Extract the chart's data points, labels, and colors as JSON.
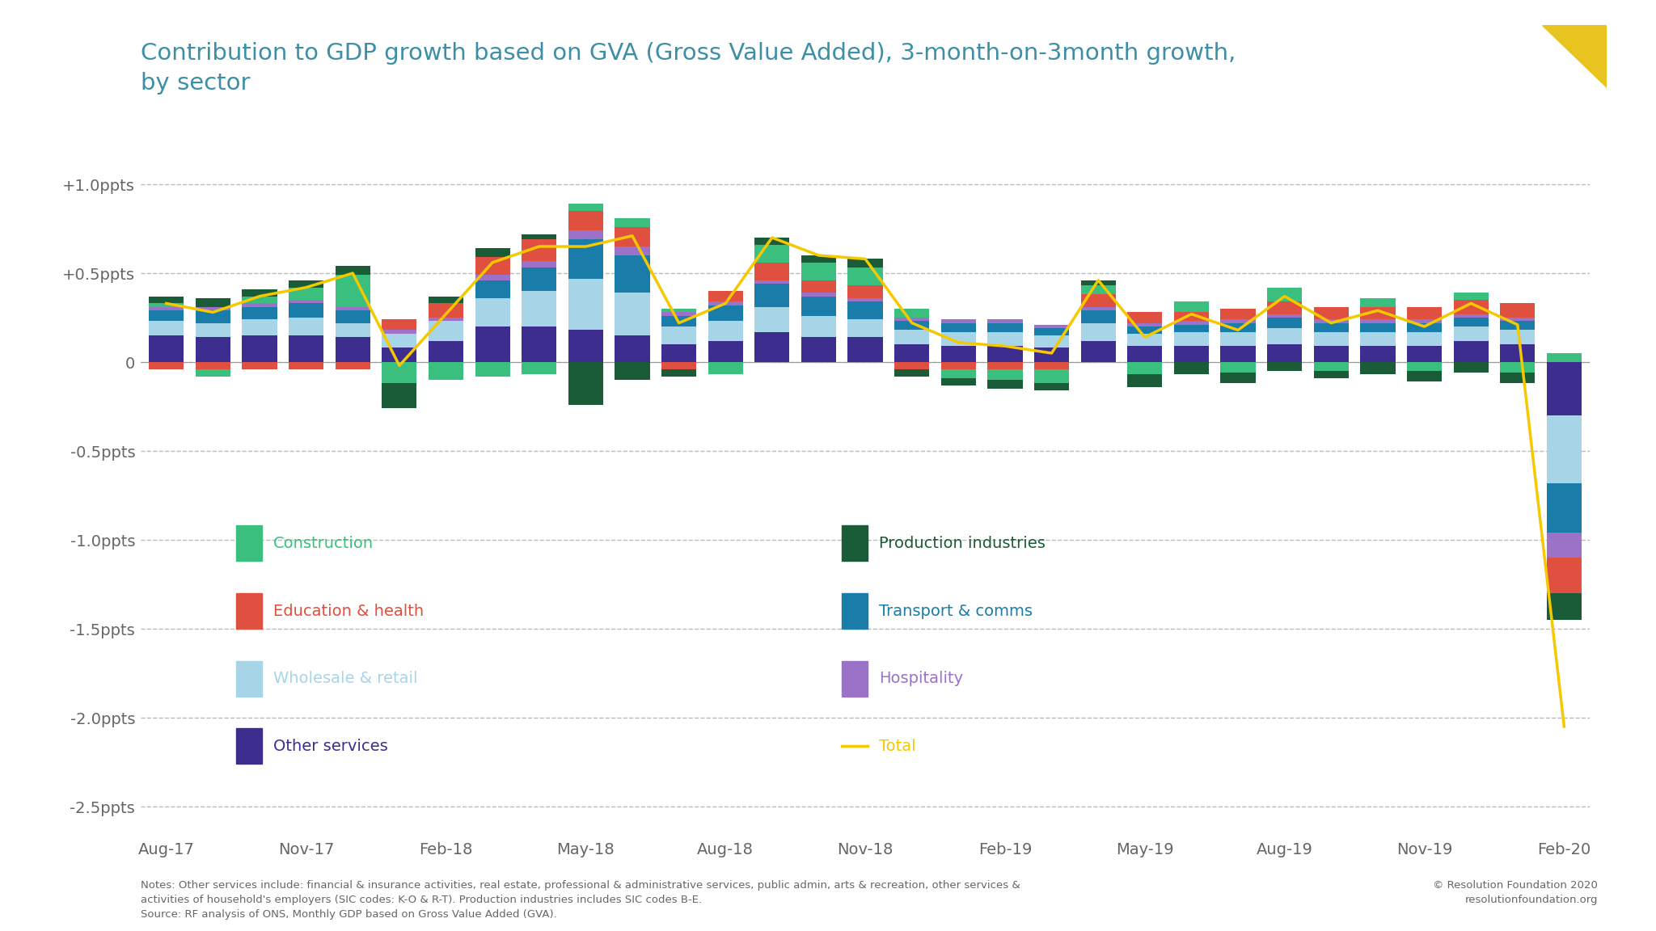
{
  "title": "Contribution to GDP growth based on GVA (Gross Value Added), 3-month-on-3month growth,\nby sector",
  "title_color": "#3d8fa8",
  "background_color": "#ffffff",
  "ylim": [
    -2.65,
    1.12
  ],
  "yticks": [
    -2.5,
    -2.0,
    -1.5,
    -1.0,
    -0.5,
    0.0,
    0.5,
    1.0
  ],
  "ytick_labels": [
    "-2.5ppts",
    "-2.0ppts",
    "-1.5ppts",
    "-1.0ppts",
    "-0.5ppts",
    "0",
    "+0.5ppts",
    "+1.0ppts"
  ],
  "xtick_labels": [
    "Aug-17",
    "Nov-17",
    "Feb-18",
    "May-18",
    "Aug-18",
    "Nov-18",
    "Feb-19",
    "May-19",
    "Aug-19",
    "Nov-19",
    "Feb-20"
  ],
  "colors": {
    "construction": "#3abf7e",
    "production": "#1a5c38",
    "education_health": "#e05040",
    "transport_comms": "#1a7ca8",
    "wholesale_retail": "#a8d4e8",
    "hospitality": "#9b72c8",
    "other_services": "#3d2d8e",
    "total_line": "#f5c800"
  },
  "footnote": "Notes: Other services include: financial & insurance activities, real estate, professional & administrative services, public admin, arts & recreation, other services &\nactivities of household's employers (SIC codes: K-O & R-T). Production industries includes SIC codes B-E.\nSource: RF analysis of ONS, Monthly GDP based on Gross Value Added (GVA).",
  "copyright": "© Resolution Foundation 2020\nresolutionfoundation.org",
  "series": {
    "other_services": [
      0.15,
      0.14,
      0.15,
      0.15,
      0.14,
      0.08,
      0.12,
      0.2,
      0.2,
      0.18,
      0.15,
      0.1,
      0.12,
      0.17,
      0.14,
      0.14,
      0.1,
      0.09,
      0.09,
      0.08,
      0.12,
      0.09,
      0.09,
      0.09,
      0.1,
      0.09,
      0.09,
      0.09,
      0.12,
      0.1,
      -0.3
    ],
    "wholesale_retail": [
      0.08,
      0.08,
      0.09,
      0.1,
      0.08,
      0.08,
      0.11,
      0.16,
      0.2,
      0.29,
      0.24,
      0.1,
      0.11,
      0.14,
      0.12,
      0.1,
      0.08,
      0.08,
      0.08,
      0.07,
      0.1,
      0.07,
      0.08,
      0.08,
      0.09,
      0.08,
      0.08,
      0.08,
      0.08,
      0.08,
      -0.38
    ],
    "transport_comms": [
      0.06,
      0.07,
      0.07,
      0.08,
      0.07,
      0.0,
      0.0,
      0.1,
      0.13,
      0.22,
      0.21,
      0.06,
      0.09,
      0.13,
      0.11,
      0.1,
      0.05,
      0.05,
      0.05,
      0.04,
      0.07,
      0.04,
      0.04,
      0.05,
      0.06,
      0.05,
      0.05,
      0.05,
      0.05,
      0.05,
      -0.28
    ],
    "hospitality": [
      0.02,
      0.02,
      0.02,
      0.02,
      0.02,
      0.02,
      0.02,
      0.03,
      0.04,
      0.05,
      0.05,
      0.02,
      0.02,
      0.02,
      0.02,
      0.02,
      0.02,
      0.02,
      0.02,
      0.02,
      0.02,
      0.02,
      0.02,
      0.02,
      0.02,
      0.02,
      0.02,
      0.02,
      0.02,
      0.02,
      -0.14
    ],
    "education_health": [
      -0.04,
      -0.04,
      -0.04,
      -0.04,
      -0.04,
      0.06,
      0.08,
      0.1,
      0.12,
      0.11,
      0.11,
      -0.04,
      0.06,
      0.1,
      0.07,
      0.07,
      -0.04,
      -0.04,
      -0.04,
      -0.04,
      0.07,
      0.06,
      0.05,
      0.06,
      0.07,
      0.07,
      0.07,
      0.07,
      0.08,
      0.08,
      -0.2
    ],
    "construction": [
      0.02,
      -0.04,
      0.04,
      0.07,
      0.18,
      -0.12,
      -0.1,
      -0.08,
      -0.07,
      0.04,
      0.05,
      0.02,
      -0.07,
      0.1,
      0.1,
      0.1,
      0.05,
      -0.05,
      -0.06,
      -0.08,
      0.05,
      -0.07,
      0.06,
      -0.06,
      0.08,
      -0.05,
      0.05,
      -0.05,
      0.04,
      -0.06,
      0.05
    ],
    "production": [
      0.04,
      0.05,
      0.04,
      0.04,
      0.05,
      -0.14,
      0.04,
      0.05,
      0.03,
      -0.24,
      -0.1,
      -0.04,
      0.0,
      0.04,
      0.04,
      0.05,
      -0.04,
      -0.04,
      -0.05,
      -0.04,
      0.03,
      -0.07,
      -0.07,
      -0.06,
      -0.05,
      -0.04,
      -0.07,
      -0.06,
      -0.06,
      -0.06,
      -0.15
    ]
  },
  "total_line": [
    0.33,
    0.28,
    0.37,
    0.42,
    0.5,
    -0.02,
    0.27,
    0.56,
    0.65,
    0.65,
    0.71,
    0.22,
    0.33,
    0.7,
    0.6,
    0.58,
    0.22,
    0.11,
    0.09,
    0.05,
    0.46,
    0.14,
    0.27,
    0.18,
    0.37,
    0.22,
    0.29,
    0.2,
    0.33,
    0.21,
    -2.05
  ],
  "n_bars": 31,
  "xtick_positions": [
    0,
    3,
    6,
    9,
    12,
    15,
    18,
    21,
    24,
    27,
    30
  ]
}
